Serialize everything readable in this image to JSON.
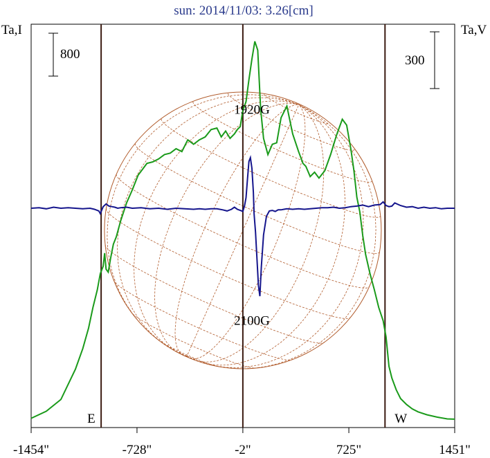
{
  "chart_data": {
    "type": "line",
    "title": "sun: 2014/11/03: 3.26[cm]",
    "left_axis_label": "Ta,I",
    "right_axis_label": "Ta,V",
    "left_scale_label": "800",
    "right_scale_label": "300",
    "x_ticks": [
      {
        "label": "-1454\"",
        "value": -1454
      },
      {
        "label": "-728\"",
        "value": -728
      },
      {
        "label": "-2\"",
        "value": -2
      },
      {
        "label": "725\"",
        "value": 725
      },
      {
        "label": "1451\"",
        "value": 1451
      }
    ],
    "xlim": [
      -1454,
      1451
    ],
    "vertical_markers": [
      {
        "label": "E",
        "value": -974
      },
      {
        "label": "",
        "value": -2
      },
      {
        "label": "W",
        "value": 973
      }
    ],
    "annotations": [
      {
        "text": "1920G",
        "x": 60,
        "y_frac": 0.222
      },
      {
        "text": "2100G",
        "x": 60,
        "y_frac": 0.745
      }
    ],
    "grid": false,
    "series": [
      {
        "key": "intensity",
        "color": "#1a9a1a",
        "x": [
          -1454,
          -1350,
          -1250,
          -1150,
          -1100,
          -1060,
          -1030,
          -1000,
          -980,
          -960,
          -950,
          -940,
          -925,
          -910,
          -890,
          -870,
          -840,
          -800,
          -760,
          -720,
          -690,
          -660,
          -620,
          -580,
          -540,
          -500,
          -460,
          -420,
          -380,
          -340,
          -300,
          -260,
          -220,
          -180,
          -150,
          -120,
          -90,
          -60,
          -40,
          -20,
          -2,
          20,
          40,
          60,
          80,
          100,
          110,
          120,
          140,
          170,
          200,
          230,
          260,
          300,
          340,
          380,
          410,
          430,
          460,
          490,
          520,
          560,
          600,
          640,
          680,
          710,
          740,
          760,
          780,
          800,
          820,
          840,
          870,
          900,
          930,
          960,
          980,
          990,
          1000,
          1020,
          1050,
          1080,
          1120,
          1160,
          1200,
          1260,
          1330,
          1400,
          1451
        ],
        "y": [
          0.08,
          0.32,
          0.72,
          1.75,
          2.45,
          3.15,
          3.85,
          4.45,
          5.0,
          5.25,
          5.7,
          5.15,
          5.05,
          5.5,
          6.0,
          6.25,
          6.8,
          7.4,
          7.85,
          8.35,
          8.55,
          8.75,
          8.8,
          8.9,
          9.05,
          9.1,
          9.25,
          9.15,
          9.55,
          9.4,
          9.55,
          9.65,
          9.9,
          9.95,
          9.65,
          9.85,
          9.6,
          9.75,
          9.9,
          10.0,
          10.55,
          10.85,
          11.6,
          12.3,
          12.9,
          12.6,
          11.6,
          10.6,
          9.6,
          9.05,
          9.4,
          9.45,
          10.3,
          10.7,
          9.75,
          9.15,
          8.75,
          8.65,
          8.3,
          8.45,
          8.25,
          8.5,
          9.05,
          9.7,
          10.25,
          10.05,
          9.2,
          8.5,
          7.6,
          7.1,
          6.3,
          5.65,
          5.0,
          4.45,
          3.85,
          3.4,
          2.85,
          2.35,
          1.85,
          1.45,
          1.05,
          0.75,
          0.55,
          0.4,
          0.3,
          0.2,
          0.12,
          0.06,
          0.05
        ]
      },
      {
        "key": "polarization",
        "color": "#14148c",
        "x": [
          -1454,
          -1400,
          -1350,
          -1300,
          -1250,
          -1200,
          -1150,
          -1100,
          -1050,
          -1020,
          -990,
          -980,
          -960,
          -940,
          -920,
          -900,
          -880,
          -860,
          -840,
          -800,
          -760,
          -700,
          -640,
          -580,
          -520,
          -460,
          -400,
          -340,
          -300,
          -260,
          -220,
          -180,
          -140,
          -110,
          -80,
          -60,
          -40,
          -20,
          -2,
          10,
          20,
          30,
          40,
          50,
          60,
          70,
          75,
          85,
          95,
          105,
          115,
          125,
          140,
          160,
          180,
          200,
          220,
          240,
          260,
          280,
          300,
          340,
          380,
          420,
          460,
          500,
          540,
          580,
          620,
          660,
          700,
          740,
          780,
          820,
          860,
          900,
          940,
          960,
          980,
          1000,
          1020,
          1040,
          1080,
          1120,
          1160,
          1200,
          1240,
          1280,
          1320,
          1360,
          1400,
          1451
        ],
        "y": [
          0,
          0.01,
          -0.01,
          0.02,
          0,
          0.01,
          0,
          -0.01,
          0,
          -0.02,
          -0.05,
          -0.1,
          0.03,
          0.08,
          0.04,
          0.03,
          0.02,
          0.0,
          0.01,
          0.02,
          0.0,
          0.01,
          -0.01,
          0.0,
          -0.02,
          0.0,
          -0.01,
          -0.02,
          -0.01,
          -0.02,
          -0.01,
          -0.01,
          -0.03,
          -0.05,
          -0.02,
          0.02,
          -0.02,
          -0.04,
          -0.06,
          0.05,
          0.2,
          0.55,
          0.88,
          0.95,
          0.75,
          0.3,
          -0.1,
          -0.45,
          -0.95,
          -1.45,
          -1.65,
          -1.1,
          -0.5,
          -0.15,
          -0.05,
          -0.04,
          -0.06,
          -0.03,
          -0.03,
          -0.02,
          -0.01,
          -0.02,
          -0.01,
          -0.02,
          -0.01,
          0.0,
          0.01,
          0.01,
          0.02,
          0.0,
          0.01,
          0.03,
          0.04,
          0.06,
          0.03,
          0.06,
          0.07,
          0.12,
          0.05,
          0.03,
          0.04,
          0.1,
          0.05,
          0.02,
          0.03,
          0.0,
          0.02,
          0.0,
          0.01,
          -0.01,
          0.0,
          0.0
        ]
      }
    ]
  }
}
